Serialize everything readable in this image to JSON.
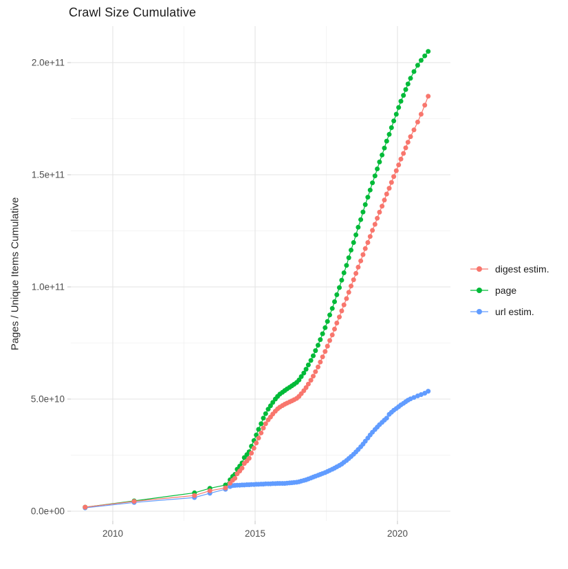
{
  "title": "Crawl Size Cumulative",
  "axes": {
    "y_label": "Pages / Unique Items Cumulative",
    "y_ticks": [
      {
        "value": 0,
        "label": "0.0e+00"
      },
      {
        "value": 50,
        "label": "5.0e+10"
      },
      {
        "value": 100,
        "label": "1.0e+11"
      },
      {
        "value": 150,
        "label": "1.5e+11"
      },
      {
        "value": 200,
        "label": "2.0e+11"
      }
    ],
    "y_minor": [
      25,
      75,
      125,
      175
    ],
    "x_ticks": [
      {
        "value": 2010,
        "label": "2010"
      },
      {
        "value": 2015,
        "label": "2015"
      },
      {
        "value": 2020,
        "label": "2020"
      }
    ],
    "x_minor": [
      2012.5,
      2017.5
    ]
  },
  "colors": {
    "digest": "#F8766D",
    "page": "#00BA38",
    "url": "#619CFF",
    "grid_major": "#E3E3E3",
    "grid_minor": "#F1F1F1",
    "tick": "#CFCFCF",
    "axis_text": "#4D4D4D"
  },
  "legend": {
    "items": [
      {
        "id": "digest",
        "label": "digest estim.",
        "color": "#F8766D"
      },
      {
        "id": "page",
        "label": "page",
        "color": "#00BA38"
      },
      {
        "id": "url",
        "label": "url estim.",
        "color": "#619CFF"
      }
    ]
  },
  "chart_data": {
    "type": "scatter",
    "title": "Crawl Size Cumulative",
    "xlabel": "",
    "ylabel": "Pages / Unique Items Cumulative",
    "x_unit": "year (decimal)",
    "y_unit": "items, values given in billions (1e9); axis shows 0.0e+00 to 2.0e+11",
    "xlim": [
      2008.5,
      2021.9
    ],
    "ylim_e9": [
      -5,
      216
    ],
    "grid": true,
    "legend_position": "right",
    "marker_style": "point-with-line",
    "series": [
      {
        "name": "digest estim.",
        "color": "#F8766D",
        "points": [
          [
            2009.03,
            1.8
          ],
          [
            2010.75,
            4.4
          ],
          [
            2012.87,
            7.0
          ],
          [
            2013.41,
            9.1
          ],
          [
            2013.96,
            10.4
          ],
          [
            2014.12,
            12.5
          ],
          [
            2014.21,
            13.8
          ],
          [
            2014.29,
            14.7
          ],
          [
            2014.37,
            16.7
          ],
          [
            2014.46,
            17.9
          ],
          [
            2014.54,
            19.2
          ],
          [
            2014.62,
            21.3
          ],
          [
            2014.71,
            22.4
          ],
          [
            2014.79,
            23.6
          ],
          [
            2014.87,
            25.9
          ],
          [
            2014.96,
            28.1
          ],
          [
            2015.04,
            30.4
          ],
          [
            2015.12,
            32.6
          ],
          [
            2015.21,
            34.9
          ],
          [
            2015.29,
            37.1
          ],
          [
            2015.37,
            39.0
          ],
          [
            2015.46,
            40.7
          ],
          [
            2015.54,
            42.0
          ],
          [
            2015.62,
            43.3
          ],
          [
            2015.71,
            44.6
          ],
          [
            2015.79,
            45.6
          ],
          [
            2015.87,
            46.4
          ],
          [
            2015.96,
            47.1
          ],
          [
            2016.04,
            47.7
          ],
          [
            2016.12,
            48.2
          ],
          [
            2016.21,
            48.7
          ],
          [
            2016.29,
            49.2
          ],
          [
            2016.37,
            49.7
          ],
          [
            2016.46,
            50.3
          ],
          [
            2016.54,
            51.2
          ],
          [
            2016.62,
            52.4
          ],
          [
            2016.71,
            53.7
          ],
          [
            2016.79,
            55.1
          ],
          [
            2016.87,
            56.7
          ],
          [
            2016.96,
            58.4
          ],
          [
            2017.04,
            60.2
          ],
          [
            2017.12,
            62.2
          ],
          [
            2017.21,
            64.3
          ],
          [
            2017.29,
            66.5
          ],
          [
            2017.37,
            68.8
          ],
          [
            2017.46,
            71.2
          ],
          [
            2017.54,
            73.6
          ],
          [
            2017.62,
            76.1
          ],
          [
            2017.71,
            78.6
          ],
          [
            2017.79,
            81.2
          ],
          [
            2017.87,
            83.9
          ],
          [
            2017.96,
            86.6
          ],
          [
            2018.04,
            89.3
          ],
          [
            2018.12,
            92.0
          ],
          [
            2018.21,
            94.8
          ],
          [
            2018.29,
            97.6
          ],
          [
            2018.37,
            100.4
          ],
          [
            2018.46,
            103.2
          ],
          [
            2018.54,
            106.0
          ],
          [
            2018.62,
            108.8
          ],
          [
            2018.71,
            111.6
          ],
          [
            2018.79,
            114.4
          ],
          [
            2018.87,
            117.1
          ],
          [
            2018.96,
            119.8
          ],
          [
            2019.04,
            122.5
          ],
          [
            2019.12,
            125.2
          ],
          [
            2019.21,
            127.9
          ],
          [
            2019.29,
            130.6
          ],
          [
            2019.37,
            133.3
          ],
          [
            2019.46,
            136.0
          ],
          [
            2019.54,
            138.7
          ],
          [
            2019.62,
            141.4
          ],
          [
            2019.71,
            144.0
          ],
          [
            2019.79,
            146.6
          ],
          [
            2019.87,
            149.2
          ],
          [
            2019.96,
            151.8
          ],
          [
            2020.04,
            154.4
          ],
          [
            2020.12,
            157.0
          ],
          [
            2020.21,
            159.5
          ],
          [
            2020.29,
            162.0
          ],
          [
            2020.37,
            164.5
          ],
          [
            2020.46,
            167.0
          ],
          [
            2020.58,
            170.0
          ],
          [
            2020.71,
            173.5
          ],
          [
            2020.83,
            177.0
          ],
          [
            2020.96,
            181.0
          ],
          [
            2021.08,
            185.0
          ]
        ]
      },
      {
        "name": "page",
        "color": "#00BA38",
        "points": [
          [
            2009.03,
            1.8
          ],
          [
            2010.75,
            4.6
          ],
          [
            2012.87,
            8.2
          ],
          [
            2013.41,
            10.2
          ],
          [
            2013.96,
            11.7
          ],
          [
            2014.12,
            14.0
          ],
          [
            2014.21,
            15.5
          ],
          [
            2014.29,
            16.4
          ],
          [
            2014.37,
            18.7
          ],
          [
            2014.46,
            20.1
          ],
          [
            2014.54,
            21.5
          ],
          [
            2014.62,
            23.9
          ],
          [
            2014.71,
            25.2
          ],
          [
            2014.79,
            26.5
          ],
          [
            2014.87,
            29.0
          ],
          [
            2014.96,
            31.5
          ],
          [
            2015.04,
            34.0
          ],
          [
            2015.12,
            36.5
          ],
          [
            2015.21,
            39.0
          ],
          [
            2015.29,
            41.5
          ],
          [
            2015.37,
            43.5
          ],
          [
            2015.46,
            45.5
          ],
          [
            2015.54,
            47.0
          ],
          [
            2015.62,
            48.5
          ],
          [
            2015.71,
            50.0
          ],
          [
            2015.79,
            51.2
          ],
          [
            2015.87,
            52.2
          ],
          [
            2015.96,
            53.0
          ],
          [
            2016.04,
            53.8
          ],
          [
            2016.12,
            54.5
          ],
          [
            2016.21,
            55.2
          ],
          [
            2016.29,
            55.9
          ],
          [
            2016.37,
            56.6
          ],
          [
            2016.46,
            57.4
          ],
          [
            2016.54,
            58.5
          ],
          [
            2016.62,
            60.0
          ],
          [
            2016.71,
            61.6
          ],
          [
            2016.79,
            63.3
          ],
          [
            2016.87,
            65.2
          ],
          [
            2016.96,
            67.2
          ],
          [
            2017.04,
            69.3
          ],
          [
            2017.12,
            71.6
          ],
          [
            2017.21,
            74.0
          ],
          [
            2017.29,
            76.5
          ],
          [
            2017.37,
            79.1
          ],
          [
            2017.46,
            81.8
          ],
          [
            2017.54,
            84.6
          ],
          [
            2017.62,
            87.5
          ],
          [
            2017.71,
            90.4
          ],
          [
            2017.79,
            93.4
          ],
          [
            2017.87,
            96.5
          ],
          [
            2017.96,
            99.7
          ],
          [
            2018.04,
            103.0
          ],
          [
            2018.12,
            106.3
          ],
          [
            2018.21,
            109.6
          ],
          [
            2018.29,
            113.0
          ],
          [
            2018.37,
            116.4
          ],
          [
            2018.46,
            119.8
          ],
          [
            2018.54,
            123.2
          ],
          [
            2018.62,
            126.6
          ],
          [
            2018.71,
            130.0
          ],
          [
            2018.79,
            133.4
          ],
          [
            2018.87,
            136.7
          ],
          [
            2018.96,
            140.0
          ],
          [
            2019.04,
            143.2
          ],
          [
            2019.12,
            146.4
          ],
          [
            2019.21,
            149.5
          ],
          [
            2019.29,
            152.6
          ],
          [
            2019.37,
            155.7
          ],
          [
            2019.46,
            158.8
          ],
          [
            2019.54,
            161.9
          ],
          [
            2019.62,
            165.0
          ],
          [
            2019.71,
            168.0
          ],
          [
            2019.79,
            171.0
          ],
          [
            2019.87,
            174.0
          ],
          [
            2019.96,
            177.0
          ],
          [
            2020.04,
            180.0
          ],
          [
            2020.12,
            182.8
          ],
          [
            2020.21,
            185.4
          ],
          [
            2020.29,
            188.0
          ],
          [
            2020.37,
            190.5
          ],
          [
            2020.46,
            193.0
          ],
          [
            2020.58,
            196.0
          ],
          [
            2020.71,
            198.8
          ],
          [
            2020.83,
            201.0
          ],
          [
            2020.96,
            203.0
          ],
          [
            2021.08,
            205.0
          ]
        ]
      },
      {
        "name": "url estim.",
        "color": "#619CFF",
        "points": [
          [
            2009.03,
            1.5
          ],
          [
            2010.75,
            3.9
          ],
          [
            2012.87,
            6.1
          ],
          [
            2013.41,
            8.0
          ],
          [
            2013.96,
            9.8
          ],
          [
            2014.12,
            11.0
          ],
          [
            2014.21,
            11.4
          ],
          [
            2014.29,
            11.5
          ],
          [
            2014.37,
            11.6
          ],
          [
            2014.46,
            11.6
          ],
          [
            2014.54,
            11.7
          ],
          [
            2014.62,
            11.7
          ],
          [
            2014.71,
            11.8
          ],
          [
            2014.79,
            11.8
          ],
          [
            2014.87,
            11.9
          ],
          [
            2014.96,
            11.9
          ],
          [
            2015.04,
            12.0
          ],
          [
            2015.12,
            12.0
          ],
          [
            2015.21,
            12.1
          ],
          [
            2015.29,
            12.1
          ],
          [
            2015.37,
            12.2
          ],
          [
            2015.46,
            12.2
          ],
          [
            2015.54,
            12.2
          ],
          [
            2015.62,
            12.3
          ],
          [
            2015.71,
            12.3
          ],
          [
            2015.79,
            12.4
          ],
          [
            2015.87,
            12.4
          ],
          [
            2015.96,
            12.4
          ],
          [
            2016.04,
            12.4
          ],
          [
            2016.12,
            12.5
          ],
          [
            2016.21,
            12.6
          ],
          [
            2016.29,
            12.7
          ],
          [
            2016.37,
            12.8
          ],
          [
            2016.46,
            12.9
          ],
          [
            2016.54,
            13.1
          ],
          [
            2016.62,
            13.4
          ],
          [
            2016.71,
            13.7
          ],
          [
            2016.79,
            14.0
          ],
          [
            2016.87,
            14.4
          ],
          [
            2016.96,
            14.8
          ],
          [
            2017.04,
            15.2
          ],
          [
            2017.12,
            15.6
          ],
          [
            2017.21,
            16.0
          ],
          [
            2017.29,
            16.4
          ],
          [
            2017.37,
            16.8
          ],
          [
            2017.46,
            17.2
          ],
          [
            2017.54,
            17.7
          ],
          [
            2017.62,
            18.2
          ],
          [
            2017.71,
            18.7
          ],
          [
            2017.79,
            19.2
          ],
          [
            2017.87,
            19.8
          ],
          [
            2017.96,
            20.4
          ],
          [
            2018.04,
            21.0
          ],
          [
            2018.12,
            21.8
          ],
          [
            2018.21,
            22.6
          ],
          [
            2018.29,
            23.5
          ],
          [
            2018.37,
            24.4
          ],
          [
            2018.46,
            25.4
          ],
          [
            2018.54,
            26.4
          ],
          [
            2018.62,
            27.5
          ],
          [
            2018.71,
            28.7
          ],
          [
            2018.79,
            29.9
          ],
          [
            2018.87,
            31.2
          ],
          [
            2018.96,
            32.6
          ],
          [
            2019.04,
            34.0
          ],
          [
            2019.12,
            35.2
          ],
          [
            2019.21,
            36.4
          ],
          [
            2019.29,
            37.5
          ],
          [
            2019.37,
            38.6
          ],
          [
            2019.46,
            39.6
          ],
          [
            2019.54,
            40.6
          ],
          [
            2019.62,
            41.5
          ],
          [
            2019.71,
            43.2
          ],
          [
            2019.79,
            44.1
          ],
          [
            2019.87,
            45.0
          ],
          [
            2019.96,
            45.8
          ],
          [
            2020.04,
            46.6
          ],
          [
            2020.12,
            47.4
          ],
          [
            2020.21,
            48.1
          ],
          [
            2020.29,
            48.8
          ],
          [
            2020.37,
            49.5
          ],
          [
            2020.46,
            50.1
          ],
          [
            2020.58,
            50.7
          ],
          [
            2020.71,
            51.4
          ],
          [
            2020.83,
            52.0
          ],
          [
            2020.96,
            52.6
          ],
          [
            2021.08,
            53.5
          ]
        ]
      }
    ]
  }
}
